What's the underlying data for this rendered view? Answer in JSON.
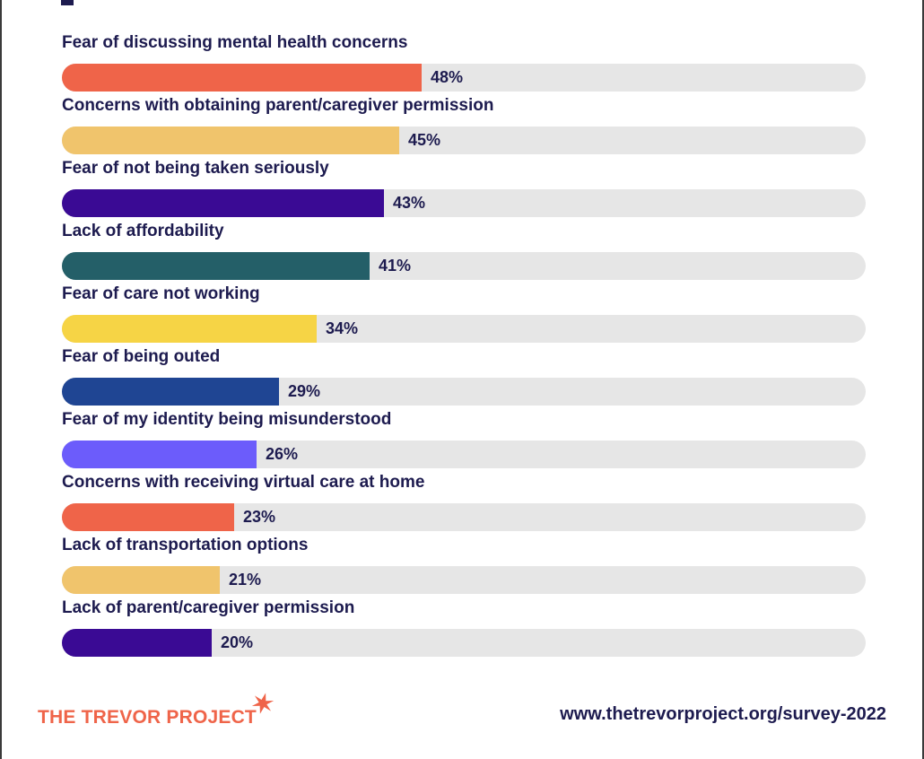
{
  "chart_data": {
    "type": "bar",
    "orientation": "horizontal",
    "xlim": [
      0,
      100
    ],
    "unit": "%",
    "categories": [
      "Fear of discussing mental health concerns",
      "Concerns with obtaining parent/caregiver permission",
      "Fear of not being taken seriously",
      "Lack of affordability",
      "Fear of care not working",
      "Fear of being outed",
      "Fear of my identity being misunderstood",
      "Concerns with receiving virtual care at home",
      "Lack of transportation options",
      "Lack of parent/caregiver permission"
    ],
    "values": [
      48,
      45,
      43,
      41,
      34,
      29,
      26,
      23,
      21,
      20
    ],
    "value_labels": [
      "48%",
      "45%",
      "43%",
      "41%",
      "34%",
      "29%",
      "26%",
      "23%",
      "21%",
      "20%"
    ],
    "bar_colors": [
      "#ef6449",
      "#f0c46c",
      "#3a0a94",
      "#245f68",
      "#f6d445",
      "#1f4593",
      "#6c5cfb",
      "#ef6449",
      "#f0c46c",
      "#3a0a94"
    ],
    "track_color": "#e6e6e6",
    "label_color": "#1d1b4f"
  },
  "footer": {
    "logo_text": "THE TREVOR PROJECT",
    "logo_icon": "star-burst-icon",
    "logo_color": "#ef6449",
    "url": "www.thetrevorproject.org/survey-2022"
  }
}
